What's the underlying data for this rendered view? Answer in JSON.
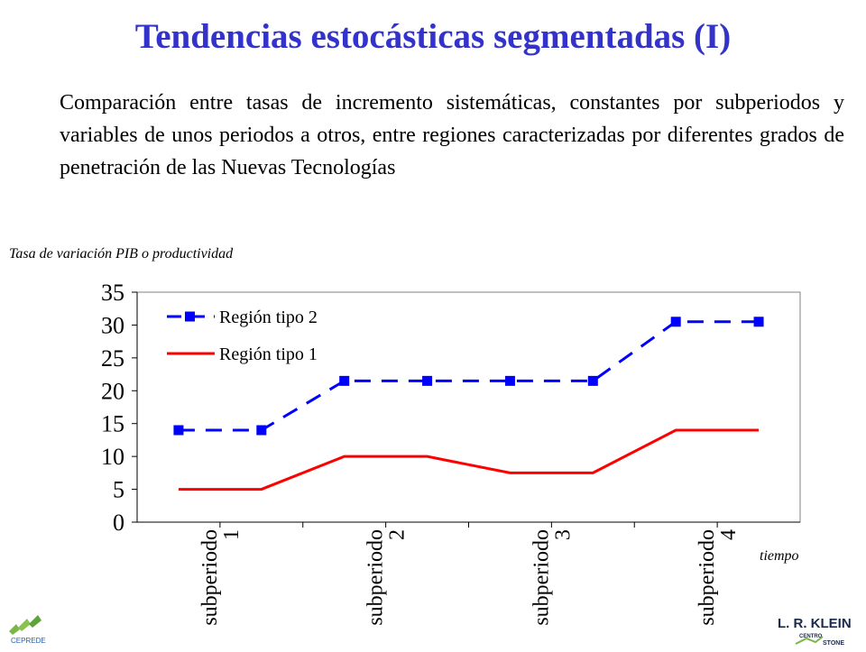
{
  "slide": {
    "title": "Tendencias estocásticas segmentadas (I)",
    "intro": "Comparación entre tasas de incremento sistemáticas, constantes por subperiodos y variables de unos periodos a otros, entre regiones caracterizadas por diferentes grados de penetración de las Nuevas Tecnologías",
    "title_color": "#3333cc"
  },
  "chart_data": {
    "type": "line",
    "ylabel": "Tasa de variación PIB o productividad",
    "xlabel": "tiempo",
    "ylim": [
      0,
      35
    ],
    "yticks": [
      0,
      5,
      10,
      15,
      20,
      25,
      30,
      35
    ],
    "categories": [
      "subperiodo\n1",
      "subperiodo\n2",
      "subperiodo\n3",
      "subperiodo\n4"
    ],
    "x": [
      1,
      2,
      3,
      4,
      5,
      6,
      7,
      8
    ],
    "series": [
      {
        "name": "Región tipo 2",
        "values": [
          14,
          14,
          21.5,
          21.5,
          21.5,
          21.5,
          30.5,
          30.5
        ],
        "color": "#0000ff",
        "style": "dashed",
        "marker": "square"
      },
      {
        "name": "Región tipo 1",
        "values": [
          5,
          5,
          10,
          10,
          7.5,
          7.5,
          14,
          14
        ],
        "color": "#ff0000",
        "style": "solid",
        "marker": "none"
      }
    ],
    "grid": false,
    "legend": "top-left"
  },
  "logos": {
    "left": {
      "text": "CEPREDE",
      "icon": "ceprede-logo-icon"
    },
    "right": {
      "text_main": "L. R. KLEIN",
      "text_sub1": "CENTRO",
      "text_sub2": "STONE",
      "icon": "klein-logo-icon"
    }
  }
}
